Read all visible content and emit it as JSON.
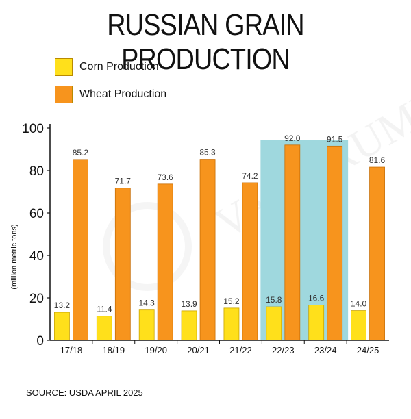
{
  "chart_data": {
    "type": "bar",
    "title": "RUSSIAN GRAIN PRODUCTION",
    "ylabel": "(million metric tons)",
    "xlabel": "",
    "ylim": [
      0,
      100
    ],
    "yticks": [
      "0",
      "20",
      "40",
      "60",
      "80",
      "100"
    ],
    "categories": [
      "17/18",
      "18/19",
      "19/20",
      "20/21",
      "21/22",
      "22/23",
      "23/24",
      "24/25"
    ],
    "series": [
      {
        "name": "Corn Production",
        "values": [
          13.2,
          11.4,
          14.3,
          13.9,
          15.2,
          15.8,
          16.6,
          14.0
        ],
        "labels": [
          "13.2",
          "11.4",
          "14.3",
          "13.9",
          "15.2",
          "15.8",
          "16.6",
          "14.0"
        ]
      },
      {
        "name": "Wheat Production",
        "values": [
          85.2,
          71.7,
          73.6,
          85.3,
          74.2,
          92.0,
          91.5,
          81.6
        ],
        "labels": [
          "85.2",
          "71.7",
          "73.6",
          "85.3",
          "74.2",
          "92.0",
          "91.5",
          "81.6"
        ]
      }
    ],
    "highlighted_categories": [
      "22/23",
      "23/24"
    ],
    "legend_position": "top-left",
    "grid": false
  },
  "source": "SOURCE: USDA APRIL 2025",
  "watermark": "The VAN TRUMP Report",
  "colors": {
    "corn": "#FFE01B",
    "wheat": "#F7941D",
    "highlight": "#9FD8DE",
    "axis": "#111111"
  }
}
